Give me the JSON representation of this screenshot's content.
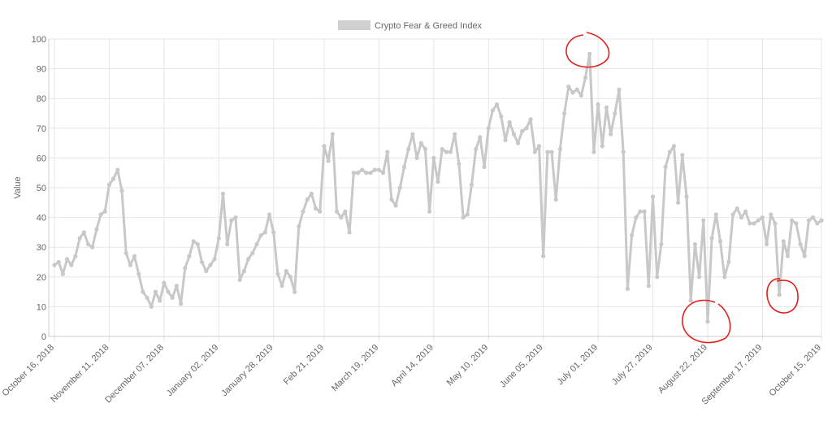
{
  "chart_data": {
    "type": "line",
    "legend_label": "Crypto Fear & Greed Index",
    "y_label": "Value",
    "categories": [
      "October 16, 2018",
      null,
      null,
      null,
      null,
      null,
      null,
      null,
      null,
      null,
      null,
      null,
      null,
      "November 11, 2018",
      null,
      null,
      null,
      null,
      null,
      null,
      null,
      null,
      null,
      null,
      null,
      null,
      "December 07, 2018",
      null,
      null,
      null,
      null,
      null,
      null,
      null,
      null,
      null,
      null,
      null,
      null,
      "January 02, 2019",
      null,
      null,
      null,
      null,
      null,
      null,
      null,
      null,
      null,
      null,
      null,
      null,
      "January 28, 2019",
      null,
      null,
      null,
      null,
      null,
      null,
      null,
      null,
      null,
      null,
      null,
      "Feb 21, 2019",
      null,
      null,
      null,
      null,
      null,
      null,
      null,
      null,
      null,
      null,
      null,
      null,
      "March 19, 2019",
      null,
      null,
      null,
      null,
      null,
      null,
      null,
      null,
      null,
      null,
      null,
      null,
      "April 14, 2019",
      null,
      null,
      null,
      null,
      null,
      null,
      null,
      null,
      null,
      null,
      null,
      null,
      "May 10, 2019",
      null,
      null,
      null,
      null,
      null,
      null,
      null,
      null,
      null,
      null,
      null,
      null,
      "June 05, 2019",
      null,
      null,
      null,
      null,
      null,
      null,
      null,
      null,
      null,
      null,
      null,
      null,
      "July 01, 2019",
      null,
      null,
      null,
      null,
      null,
      null,
      null,
      null,
      null,
      null,
      null,
      null,
      "July 27, 2019",
      null,
      null,
      null,
      null,
      null,
      null,
      null,
      null,
      null,
      null,
      null,
      null,
      "August 22, 2019",
      null,
      null,
      null,
      null,
      null,
      null,
      null,
      null,
      null,
      null,
      null,
      null,
      "September 17, 2019",
      null,
      null,
      null,
      null,
      null,
      null,
      null,
      null,
      null,
      null,
      null,
      null,
      null,
      "October 15, 2019"
    ],
    "series": [
      {
        "name": "Crypto Fear & Greed Index",
        "color": "#c8c8c8",
        "values": [
          24,
          25,
          21,
          26,
          24,
          27,
          33,
          35,
          31,
          30,
          36,
          41,
          42,
          51,
          53,
          56,
          49,
          28,
          24,
          27,
          21,
          15,
          13,
          10,
          15,
          12,
          18,
          15,
          13,
          17,
          11,
          23,
          27,
          32,
          31,
          25,
          22,
          24,
          26,
          33,
          48,
          31,
          39,
          40,
          19,
          22,
          26,
          28,
          31,
          34,
          35,
          41,
          35,
          21,
          17,
          22,
          20,
          15,
          37,
          42,
          46,
          48,
          43,
          42,
          64,
          59,
          68,
          42,
          40,
          42,
          35,
          55,
          55,
          56,
          55,
          55,
          56,
          56,
          55,
          62,
          46,
          44,
          50,
          57,
          63,
          68,
          60,
          65,
          63,
          42,
          60,
          52,
          63,
          62,
          62,
          68,
          58,
          40,
          41,
          51,
          63,
          67,
          57,
          70,
          76,
          78,
          74,
          66,
          72,
          68,
          65,
          69,
          70,
          73,
          62,
          64,
          27,
          62,
          62,
          46,
          63,
          75,
          84,
          82,
          83,
          81,
          87,
          95,
          62,
          78,
          64,
          77,
          68,
          75,
          83,
          62,
          16,
          34,
          40,
          42,
          42,
          17,
          47,
          20,
          31,
          57,
          62,
          64,
          45,
          61,
          47,
          12,
          31,
          20,
          39,
          5,
          33,
          41,
          32,
          20,
          25,
          41,
          43,
          40,
          42,
          38,
          38,
          39,
          40,
          31,
          41,
          38,
          14,
          32,
          27,
          39,
          38,
          31,
          27,
          39,
          40,
          38,
          39
        ]
      }
    ],
    "ylim": [
      0,
      100
    ],
    "yticks": [
      0,
      10,
      20,
      30,
      40,
      50,
      60,
      70,
      80,
      90,
      100
    ],
    "grid": true
  }
}
